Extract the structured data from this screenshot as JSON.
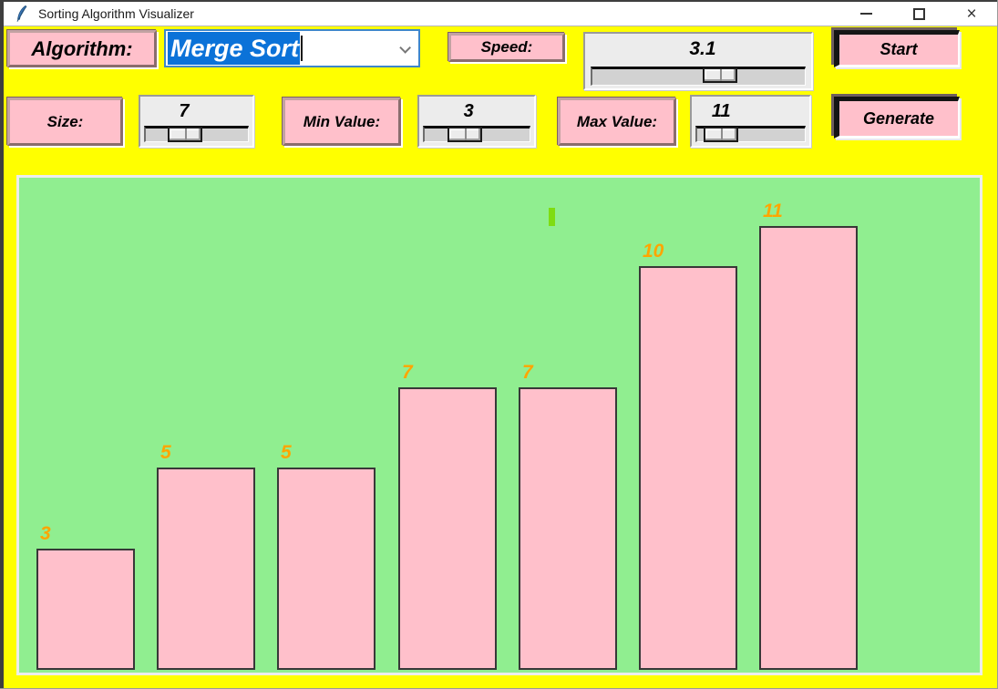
{
  "window": {
    "title": "Sorting Algorithm Visualizer"
  },
  "icons": {
    "close": "×",
    "app": "python-feather"
  },
  "controls": {
    "algorithm": {
      "label": "Algorithm:",
      "value": "Merge Sort"
    },
    "speed": {
      "label": "Speed:",
      "value": "3.1"
    },
    "start": {
      "label": "Start"
    },
    "size": {
      "label": "Size:",
      "value": "7"
    },
    "min": {
      "label": "Min Value:",
      "value": "3"
    },
    "max": {
      "label": "Max Value:",
      "value": "11"
    },
    "generate": {
      "label": "Generate"
    }
  },
  "chart_data": {
    "type": "bar",
    "values": [
      3,
      5,
      5,
      7,
      7,
      10,
      11
    ],
    "labels": [
      "3",
      "5",
      "5",
      "7",
      "7",
      "10",
      "11"
    ],
    "title": "",
    "xlabel": "",
    "ylabel": "",
    "ylim": [
      0,
      12
    ],
    "grid": false,
    "bar_color": "#ffc0cb",
    "bar_border_color": "#383838",
    "label_color": "#ffa500",
    "background_color": "#90ee90",
    "cursor_mark_color": "#7fdc12"
  },
  "colors": {
    "window_background": "#ffff00",
    "widget_pink": "#ffc0cb",
    "canvas_green": "#90ee90",
    "value_orange": "#ffa500",
    "selection_blue": "#0b72d8",
    "combo_border_blue": "#3f87c9",
    "titlebar_white": "#ffffff"
  }
}
